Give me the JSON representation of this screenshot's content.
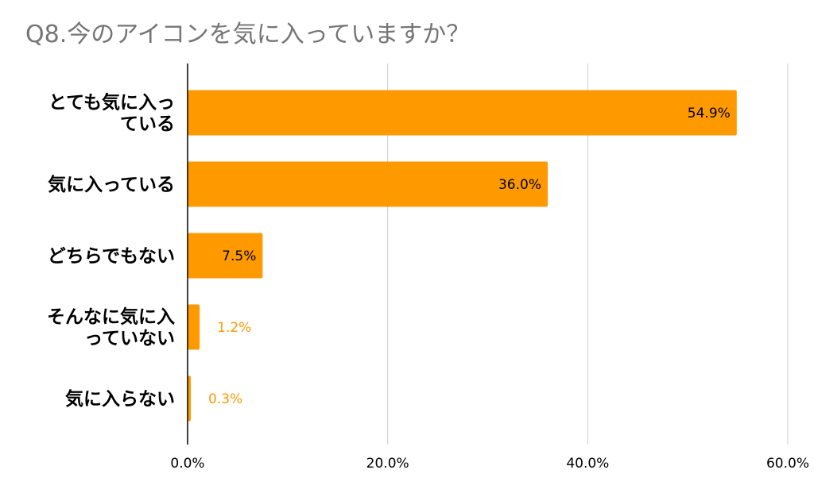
{
  "chart_data": {
    "type": "bar",
    "orientation": "horizontal",
    "title": "Q8.今のアイコンを気に入っていますか？",
    "categories": [
      [
        "とても気に入っ",
        "ている"
      ],
      [
        "気に入っている"
      ],
      [
        "どちらでもない"
      ],
      [
        "そんなに気に入",
        "っていない"
      ],
      [
        "気に入らない"
      ]
    ],
    "values": [
      54.9,
      36.0,
      7.5,
      1.2,
      0.3
    ],
    "data_labels": [
      "54.9%",
      "36.0%",
      "7.5%",
      "1.2%",
      "0.3%"
    ],
    "xlim": [
      0,
      60
    ],
    "x_ticks": [
      0,
      20,
      40,
      60
    ],
    "x_tick_labels": [
      "0.0%",
      "20.0%",
      "40.0%",
      "60.0%"
    ],
    "grid": true,
    "legend": "none",
    "colors": {
      "bar": "#ff9900",
      "label_inside": "#000000",
      "label_outside": "#ff9900",
      "title": "#757575",
      "grid": "#cccccc",
      "axis": "#000000"
    }
  }
}
